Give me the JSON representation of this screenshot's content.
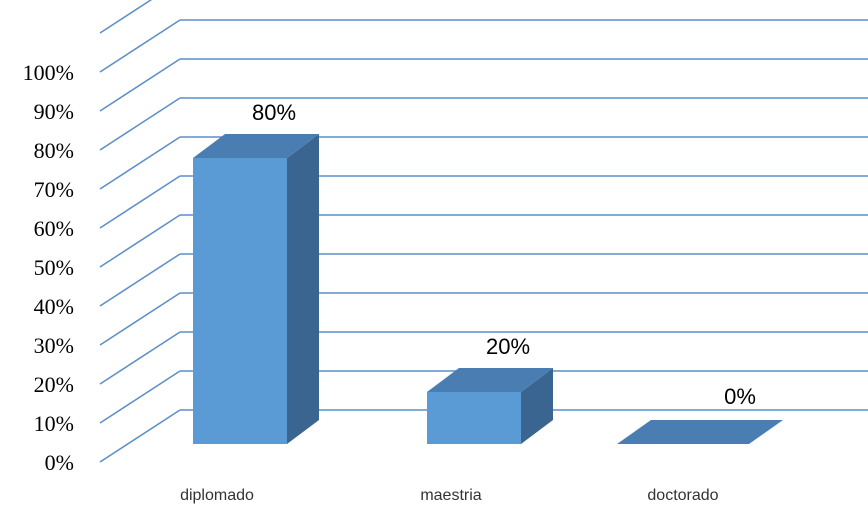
{
  "chart_data": {
    "type": "bar",
    "style": "3d-column",
    "categories": [
      "diplomado",
      "maestria",
      "doctorado"
    ],
    "values": [
      80,
      20,
      0
    ],
    "data_labels": [
      "80%",
      "20%",
      "0%"
    ],
    "y_ticks": [
      "0%",
      "10%",
      "20%",
      "30%",
      "40%",
      "50%",
      "60%",
      "70%",
      "80%",
      "90%",
      "100%"
    ],
    "ylim": [
      0,
      100
    ],
    "grid": true,
    "legend": "none",
    "colors": {
      "bar_front": "#5b9bd5",
      "bar_top": "#4a7eb3",
      "bar_side": "#3a6591",
      "gridline": "#5b8fc9"
    }
  }
}
